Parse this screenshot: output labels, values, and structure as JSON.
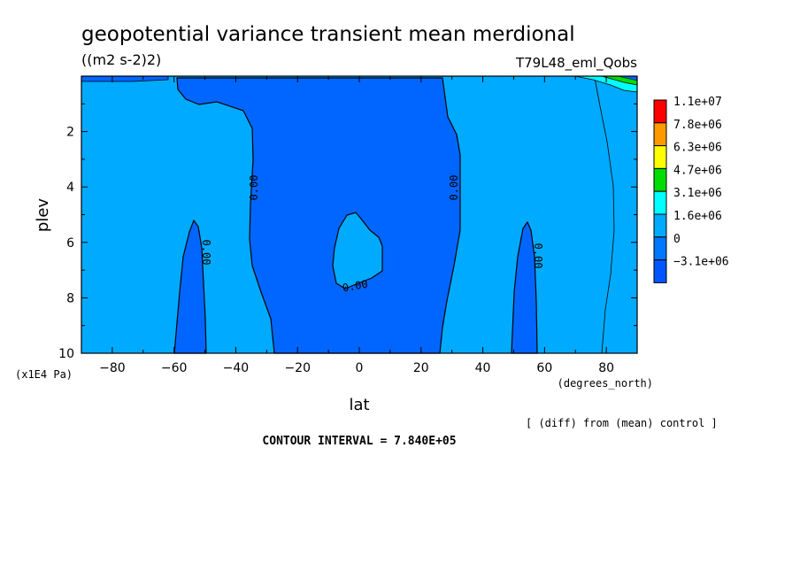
{
  "chart_data": {
    "type": "contour",
    "title": "geopotential variance transient mean merdional",
    "units": "((m2 s-2)2)",
    "run_label": "T79L48_eml_Qobs",
    "xlabel": "lat",
    "xunits": "(degrees_north)",
    "ylabel": "plev",
    "yunits": "(x1E4 Pa)",
    "xlim": [
      -90,
      90
    ],
    "ylim": [
      0,
      10
    ],
    "y_inverted": true,
    "x_ticks": [
      -80,
      -60,
      -40,
      -20,
      0,
      20,
      40,
      60,
      80
    ],
    "x_tick_labels": [
      "−80",
      "−60",
      "−40",
      "−20",
      "0",
      "20",
      "40",
      "60",
      "80"
    ],
    "y_ticks": [
      2,
      4,
      6,
      8,
      10
    ],
    "y_tick_labels": [
      "2",
      "4",
      "6",
      "8",
      "10"
    ],
    "contour_interval_text": "CONTOUR INTERVAL = 7.840E+05",
    "note": "[ (diff) from (mean) control ]",
    "contour_line_labels": [
      "0.00",
      "0.00",
      "0.00",
      "0.00",
      "0.00"
    ],
    "legend": {
      "placement": "right",
      "levels": [
        "1.1e+07",
        "7.8e+06",
        "6.3e+06",
        "4.7e+06",
        "3.1e+06",
        "1.6e+06",
        "0",
        "−3.1e+06"
      ],
      "colors": [
        "#ff0000",
        "#ff9900",
        "#ffff00",
        "#00dd00",
        "#00ffff",
        "#00aaff",
        "#0077ff",
        "#0055ff"
      ]
    },
    "regions": {
      "background": {
        "value_range": "0 to 7.84e+05",
        "color": "#00aaff"
      },
      "negative_central": {
        "lat_range": [
          -33,
          30
        ],
        "plev_range": [
          0.1,
          10
        ],
        "color": "#0066ff"
      },
      "negative_left": {
        "lat_range": [
          -60,
          -50
        ],
        "plev_range": [
          5.2,
          10
        ],
        "color": "#0066ff"
      },
      "negative_right": {
        "lat_range": [
          49,
          57
        ],
        "plev_range": [
          5.2,
          10
        ],
        "color": "#0066ff"
      },
      "positive_island": {
        "lat_range": [
          -8,
          8
        ],
        "plev_range": [
          5,
          7.7
        ],
        "color": "#00aaff"
      }
    }
  }
}
